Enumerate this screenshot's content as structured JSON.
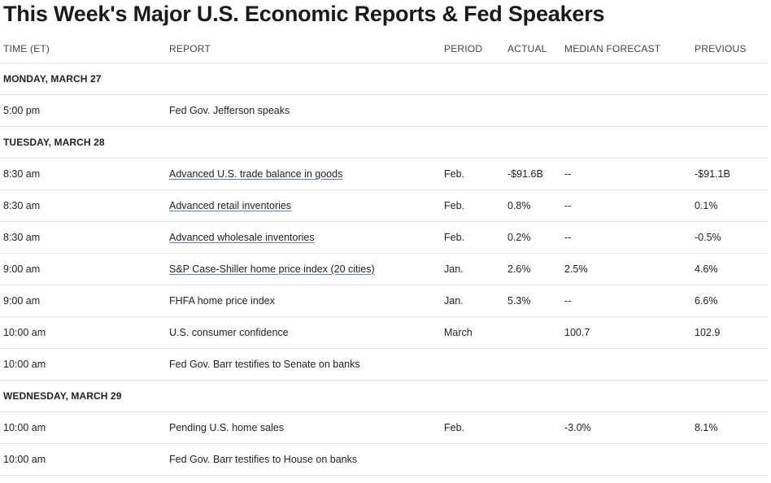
{
  "title": "This Week's Major U.S. Economic Reports & Fed Speakers",
  "headers": {
    "time": "TIME (ET)",
    "report": "REPORT",
    "period": "PERIOD",
    "actual": "ACTUAL",
    "forecast": "MEDIAN FORECAST",
    "previous": "PREVIOUS"
  },
  "days": [
    {
      "label": "MONDAY, MARCH 27",
      "rows": [
        {
          "time": "5:00 pm",
          "report": "Fed Gov. Jefferson speaks",
          "period": "",
          "actual": "",
          "forecast": "",
          "previous": "",
          "link": false
        }
      ]
    },
    {
      "label": "TUESDAY, MARCH 28",
      "rows": [
        {
          "time": "8:30 am",
          "report": "Advanced U.S. trade balance in goods",
          "period": "Feb.",
          "actual": "-$91.6B",
          "forecast": "--",
          "previous": "-$91.1B",
          "link": true
        },
        {
          "time": "8:30 am",
          "report": "Advanced retail inventories",
          "period": "Feb.",
          "actual": "0.8%",
          "forecast": "--",
          "previous": "0.1%",
          "link": true
        },
        {
          "time": "8:30 am",
          "report": "Advanced wholesale inventories",
          "period": "Feb.",
          "actual": "0.2%",
          "forecast": "--",
          "previous": "-0.5%",
          "link": true
        },
        {
          "time": "9:00 am",
          "report": "S&P Case-Shiller home price index (20 cities)",
          "period": "Jan.",
          "actual": "2.6%",
          "forecast": "2.5%",
          "previous": "4.6%",
          "link": true
        },
        {
          "time": "9:00 am",
          "report": "FHFA home price index",
          "period": "Jan.",
          "actual": "5.3%",
          "forecast": "--",
          "previous": "6.6%",
          "link": false
        },
        {
          "time": "10:00 am",
          "report": "U.S. consumer confidence",
          "period": "March",
          "actual": "",
          "forecast": "100.7",
          "previous": "102.9",
          "link": false
        },
        {
          "time": "10:00 am",
          "report": "Fed Gov. Barr testifies to Senate on banks",
          "period": "",
          "actual": "",
          "forecast": "",
          "previous": "",
          "link": false
        }
      ]
    },
    {
      "label": "WEDNESDAY, MARCH 29",
      "rows": [
        {
          "time": "10:00 am",
          "report": "Pending U.S. home sales",
          "period": "Feb.",
          "actual": "",
          "forecast": "-3.0%",
          "previous": "8.1%",
          "link": false
        },
        {
          "time": "10:00 am",
          "report": "Fed Gov. Barr testifies to House on banks",
          "period": "",
          "actual": "",
          "forecast": "",
          "previous": "",
          "link": false
        }
      ]
    }
  ],
  "colors": {
    "text": "#222222",
    "divider": "#e2e2e2",
    "link_underline": "#5b7fae"
  }
}
